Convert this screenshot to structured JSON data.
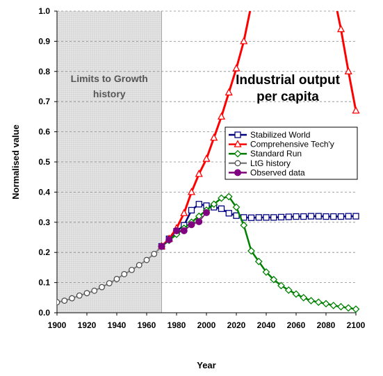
{
  "chart_data": {
    "type": "line",
    "title": "Industrial output per capita",
    "title_lines": [
      "Industrial output",
      "per capita"
    ],
    "history_annotation_lines": [
      "Limits to Growth",
      "history"
    ],
    "history_shaded_range": [
      1900,
      1970
    ],
    "xlabel": "Year",
    "ylabel": "Normalised value",
    "xlim": [
      1900,
      2100
    ],
    "ylim": [
      0,
      1.0
    ],
    "x_ticks": [
      1900,
      1920,
      1940,
      1960,
      1980,
      2000,
      2020,
      2040,
      2060,
      2080,
      2100
    ],
    "y_ticks": [
      0.0,
      0.1,
      0.2,
      0.3,
      0.4,
      0.5,
      0.6,
      0.7,
      0.8,
      0.9,
      1.0
    ],
    "y_tick_labels": [
      "0.0",
      "0.1",
      "0.2",
      "0.3",
      "0.4",
      "0.5",
      "0.6",
      "0.7",
      "0.8",
      "0.9",
      "1.0"
    ],
    "grid": "horizontal dashed",
    "legend_position": "center-right",
    "series": [
      {
        "name": "Stabilized World",
        "color": "#000080",
        "marker": "square",
        "x": [
          1970,
          1975,
          1980,
          1985,
          1990,
          1995,
          2000,
          2005,
          2010,
          2015,
          2020,
          2025,
          2030,
          2035,
          2040,
          2045,
          2050,
          2055,
          2060,
          2065,
          2070,
          2075,
          2080,
          2085,
          2090,
          2095,
          2100
        ],
        "y": [
          0.22,
          0.245,
          0.27,
          0.29,
          0.34,
          0.36,
          0.355,
          0.35,
          0.345,
          0.33,
          0.322,
          0.316,
          0.315,
          0.316,
          0.316,
          0.316,
          0.317,
          0.318,
          0.319,
          0.319,
          0.32,
          0.32,
          0.319,
          0.319,
          0.319,
          0.32,
          0.32
        ]
      },
      {
        "name": "Comprehensive Tech'y",
        "color": "#ff0000",
        "marker": "triangle",
        "x": [
          1970,
          1975,
          1980,
          1985,
          1990,
          1995,
          2000,
          2005,
          2010,
          2015,
          2020,
          2025,
          2030,
          2035,
          2085,
          2090,
          2095,
          2100
        ],
        "y": [
          0.22,
          0.245,
          0.28,
          0.33,
          0.4,
          0.46,
          0.51,
          0.58,
          0.65,
          0.73,
          0.81,
          0.9,
          1.02,
          1.12,
          1.06,
          0.94,
          0.8,
          0.67
        ]
      },
      {
        "name": "Standard Run",
        "color": "#008000",
        "marker": "diamond",
        "x": [
          1970,
          1975,
          1980,
          1985,
          1990,
          1995,
          2000,
          2005,
          2010,
          2015,
          2020,
          2025,
          2030,
          2035,
          2040,
          2045,
          2050,
          2055,
          2060,
          2065,
          2070,
          2075,
          2080,
          2085,
          2090,
          2095,
          2100
        ],
        "y": [
          0.22,
          0.24,
          0.26,
          0.28,
          0.3,
          0.32,
          0.34,
          0.36,
          0.38,
          0.385,
          0.35,
          0.29,
          0.205,
          0.17,
          0.135,
          0.11,
          0.09,
          0.075,
          0.062,
          0.05,
          0.04,
          0.035,
          0.03,
          0.024,
          0.02,
          0.016,
          0.012
        ]
      },
      {
        "name": "LtG history",
        "color": "#808080",
        "marker": "circle-open",
        "x": [
          1900,
          1905,
          1910,
          1915,
          1920,
          1925,
          1930,
          1935,
          1940,
          1945,
          1950,
          1955,
          1960,
          1965,
          1970
        ],
        "y": [
          0.035,
          0.04,
          0.048,
          0.057,
          0.065,
          0.073,
          0.085,
          0.098,
          0.112,
          0.128,
          0.142,
          0.158,
          0.175,
          0.195,
          0.22
        ]
      },
      {
        "name": "Observed data",
        "color": "#800080",
        "marker": "circle-filled",
        "x": [
          1970,
          1975,
          1980,
          1985,
          1990,
          1995,
          2000
        ],
        "y": [
          0.22,
          0.242,
          0.272,
          0.272,
          0.292,
          0.302,
          0.332
        ]
      }
    ]
  }
}
